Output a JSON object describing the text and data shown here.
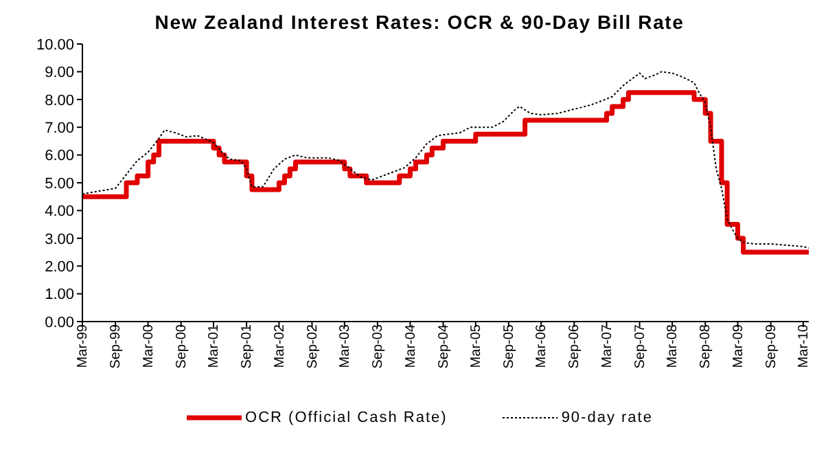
{
  "chart_data": {
    "type": "line",
    "title": "New Zealand Interest Rates: OCR & 90-Day Bill Rate",
    "xlim": [
      "1999-03",
      "2010-04"
    ],
    "xticks": [
      {
        "value": "1999-03",
        "label": "Mar-99"
      },
      {
        "value": "1999-09",
        "label": "Sep-99"
      },
      {
        "value": "2000-03",
        "label": "Mar-00"
      },
      {
        "value": "2000-09",
        "label": "Sep-00"
      },
      {
        "value": "2001-03",
        "label": "Mar-01"
      },
      {
        "value": "2001-09",
        "label": "Sep-01"
      },
      {
        "value": "2002-03",
        "label": "Mar-02"
      },
      {
        "value": "2002-09",
        "label": "Sep-02"
      },
      {
        "value": "2003-03",
        "label": "Mar-03"
      },
      {
        "value": "2003-09",
        "label": "Sep-03"
      },
      {
        "value": "2004-03",
        "label": "Mar-04"
      },
      {
        "value": "2004-09",
        "label": "Sep-04"
      },
      {
        "value": "2005-03",
        "label": "Mar-05"
      },
      {
        "value": "2005-09",
        "label": "Sep-05"
      },
      {
        "value": "2006-03",
        "label": "Mar-06"
      },
      {
        "value": "2006-09",
        "label": "Sep-06"
      },
      {
        "value": "2007-03",
        "label": "Mar-07"
      },
      {
        "value": "2007-09",
        "label": "Sep-07"
      },
      {
        "value": "2008-03",
        "label": "Mar-08"
      },
      {
        "value": "2008-09",
        "label": "Sep-08"
      },
      {
        "value": "2009-03",
        "label": "Mar-09"
      },
      {
        "value": "2009-09",
        "label": "Sep-09"
      },
      {
        "value": "2010-03",
        "label": "Mar-10"
      }
    ],
    "ylim": [
      0,
      10
    ],
    "yticks": [
      {
        "value": 0,
        "label": "0.00"
      },
      {
        "value": 1,
        "label": "1.00"
      },
      {
        "value": 2,
        "label": "2.00"
      },
      {
        "value": 3,
        "label": "3.00"
      },
      {
        "value": 4,
        "label": "4.00"
      },
      {
        "value": 5,
        "label": "5.00"
      },
      {
        "value": 6,
        "label": "6.00"
      },
      {
        "value": 7,
        "label": "7.00"
      },
      {
        "value": 8,
        "label": "8.00"
      },
      {
        "value": 9,
        "label": "9.00"
      },
      {
        "value": 10,
        "label": "10.00"
      }
    ],
    "legend": "bottom",
    "marker": "none",
    "series": [
      {
        "name": "OCR (Official Cash Rate)",
        "type": "step",
        "color": "#e00000",
        "line_style": "solid",
        "x": [
          "1999-03",
          "1999-11",
          "2000-01",
          "2000-03",
          "2000-04",
          "2000-05",
          "2001-03",
          "2001-04",
          "2001-05",
          "2001-09",
          "2001-10",
          "2002-03",
          "2002-04",
          "2002-05",
          "2002-06",
          "2003-03",
          "2003-04",
          "2003-07",
          "2004-01",
          "2004-03",
          "2004-04",
          "2004-06",
          "2004-07",
          "2004-09",
          "2005-03",
          "2005-12",
          "2007-03",
          "2007-04",
          "2007-06",
          "2007-07",
          "2008-07",
          "2008-09",
          "2008-10",
          "2008-12",
          "2009-01",
          "2009-03",
          "2009-04",
          "2010-04"
        ],
        "values": [
          4.5,
          5.0,
          5.25,
          5.75,
          6.0,
          6.5,
          6.25,
          6.0,
          5.75,
          5.25,
          4.75,
          5.0,
          5.25,
          5.5,
          5.75,
          5.5,
          5.25,
          5.0,
          5.25,
          5.5,
          5.75,
          6.0,
          6.25,
          6.5,
          6.75,
          7.25,
          7.5,
          7.75,
          8.0,
          8.25,
          8.0,
          7.5,
          6.5,
          5.0,
          3.5,
          3.0,
          2.5,
          2.5
        ]
      },
      {
        "name": "90-day rate",
        "type": "line",
        "color": "#000000",
        "line_style": "dotted",
        "x": [
          "1999-03",
          "1999-06",
          "1999-09",
          "1999-11",
          "2000-01",
          "2000-03",
          "2000-05",
          "2000-06",
          "2000-08",
          "2000-10",
          "2000-12",
          "2001-03",
          "2001-05",
          "2001-06",
          "2001-08",
          "2001-09",
          "2001-10",
          "2001-12",
          "2002-02",
          "2002-04",
          "2002-06",
          "2002-08",
          "2002-10",
          "2002-12",
          "2003-02",
          "2003-04",
          "2003-06",
          "2003-08",
          "2003-10",
          "2003-12",
          "2004-02",
          "2004-04",
          "2004-06",
          "2004-08",
          "2004-10",
          "2004-12",
          "2005-02",
          "2005-04",
          "2005-06",
          "2005-08",
          "2005-10",
          "2005-11",
          "2006-01",
          "2006-03",
          "2006-06",
          "2006-09",
          "2006-12",
          "2007-02",
          "2007-04",
          "2007-06",
          "2007-08",
          "2007-09",
          "2007-10",
          "2007-12",
          "2008-01",
          "2008-03",
          "2008-05",
          "2008-07",
          "2008-08",
          "2008-09",
          "2008-10",
          "2008-11",
          "2008-12",
          "2009-01",
          "2009-02",
          "2009-03",
          "2009-04",
          "2009-06",
          "2009-09",
          "2009-12",
          "2010-03",
          "2010-04"
        ],
        "values": [
          4.6,
          4.7,
          4.8,
          5.3,
          5.8,
          6.1,
          6.6,
          6.9,
          6.8,
          6.65,
          6.7,
          6.45,
          6.0,
          5.85,
          5.8,
          5.5,
          4.85,
          4.85,
          5.5,
          5.85,
          6.0,
          5.9,
          5.9,
          5.9,
          5.8,
          5.5,
          5.2,
          5.1,
          5.25,
          5.4,
          5.55,
          5.9,
          6.4,
          6.7,
          6.75,
          6.8,
          7.0,
          7.0,
          7.0,
          7.2,
          7.6,
          7.75,
          7.5,
          7.45,
          7.5,
          7.65,
          7.8,
          7.95,
          8.1,
          8.5,
          8.8,
          8.95,
          8.75,
          8.9,
          9.0,
          8.95,
          8.8,
          8.6,
          8.2,
          7.9,
          7.0,
          5.5,
          4.8,
          3.7,
          3.3,
          3.0,
          2.85,
          2.8,
          2.8,
          2.75,
          2.7,
          2.65
        ]
      }
    ]
  }
}
